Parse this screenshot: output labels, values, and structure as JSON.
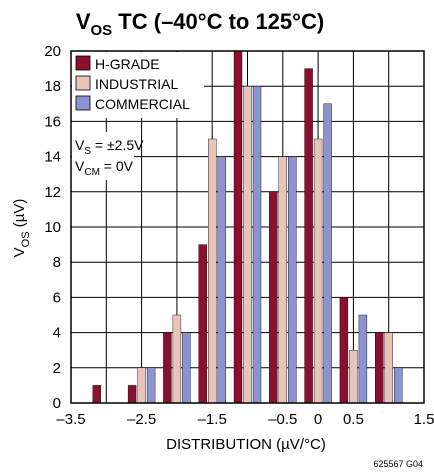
{
  "chart_data": {
    "type": "bar",
    "title": {
      "main": "V",
      "sub": "OS",
      "rest": " TC (–40°C to 125°C)"
    },
    "xlabel": "DISTRIBUTION (µV/°C)",
    "ylabel": {
      "main": "V",
      "sub": "OS",
      "rest": " (µV)"
    },
    "xlim": [
      -3.5,
      1.5
    ],
    "ylim": [
      0,
      20
    ],
    "x_ticks": [
      -3.5,
      -3,
      -2.5,
      -2,
      -1.5,
      -1,
      -0.5,
      0,
      0.5,
      1,
      1.5
    ],
    "x_tick_labels": [
      "–3.5",
      "",
      "–2.5",
      "",
      "–1.5",
      "",
      "–0.5",
      "0",
      "0.5",
      "",
      "1.5"
    ],
    "y_ticks": [
      0,
      2,
      4,
      6,
      8,
      10,
      12,
      14,
      16,
      18,
      20
    ],
    "y_tick_labels": [
      "0",
      "2",
      "4",
      "6",
      "8",
      "10",
      "12",
      "14",
      "16",
      "18",
      "20"
    ],
    "grid": true,
    "legend_position": "top-left",
    "x": [
      -3,
      -2.5,
      -2,
      -1.5,
      -1,
      -0.5,
      0,
      0.5,
      1
    ],
    "series": [
      {
        "name": "H-GRADE",
        "color": "#8b0f2e",
        "values": [
          1,
          1,
          4,
          9,
          20,
          12,
          19,
          6,
          4
        ]
      },
      {
        "name": "INDUSTRIAL",
        "color": "#e8c4bb",
        "values": [
          0,
          2,
          5,
          15,
          18,
          14,
          15,
          3,
          4
        ]
      },
      {
        "name": "COMMERCIAL",
        "color": "#8b93d0",
        "values": [
          0,
          2,
          4,
          14,
          18,
          14,
          17,
          5,
          2
        ]
      }
    ],
    "annotation": [
      {
        "main": "V",
        "sub": "S",
        "rest": " = ±2.5V"
      },
      {
        "main": "V",
        "sub": "CM",
        "rest": " = 0V"
      }
    ],
    "figure_id": "625567 G04"
  }
}
